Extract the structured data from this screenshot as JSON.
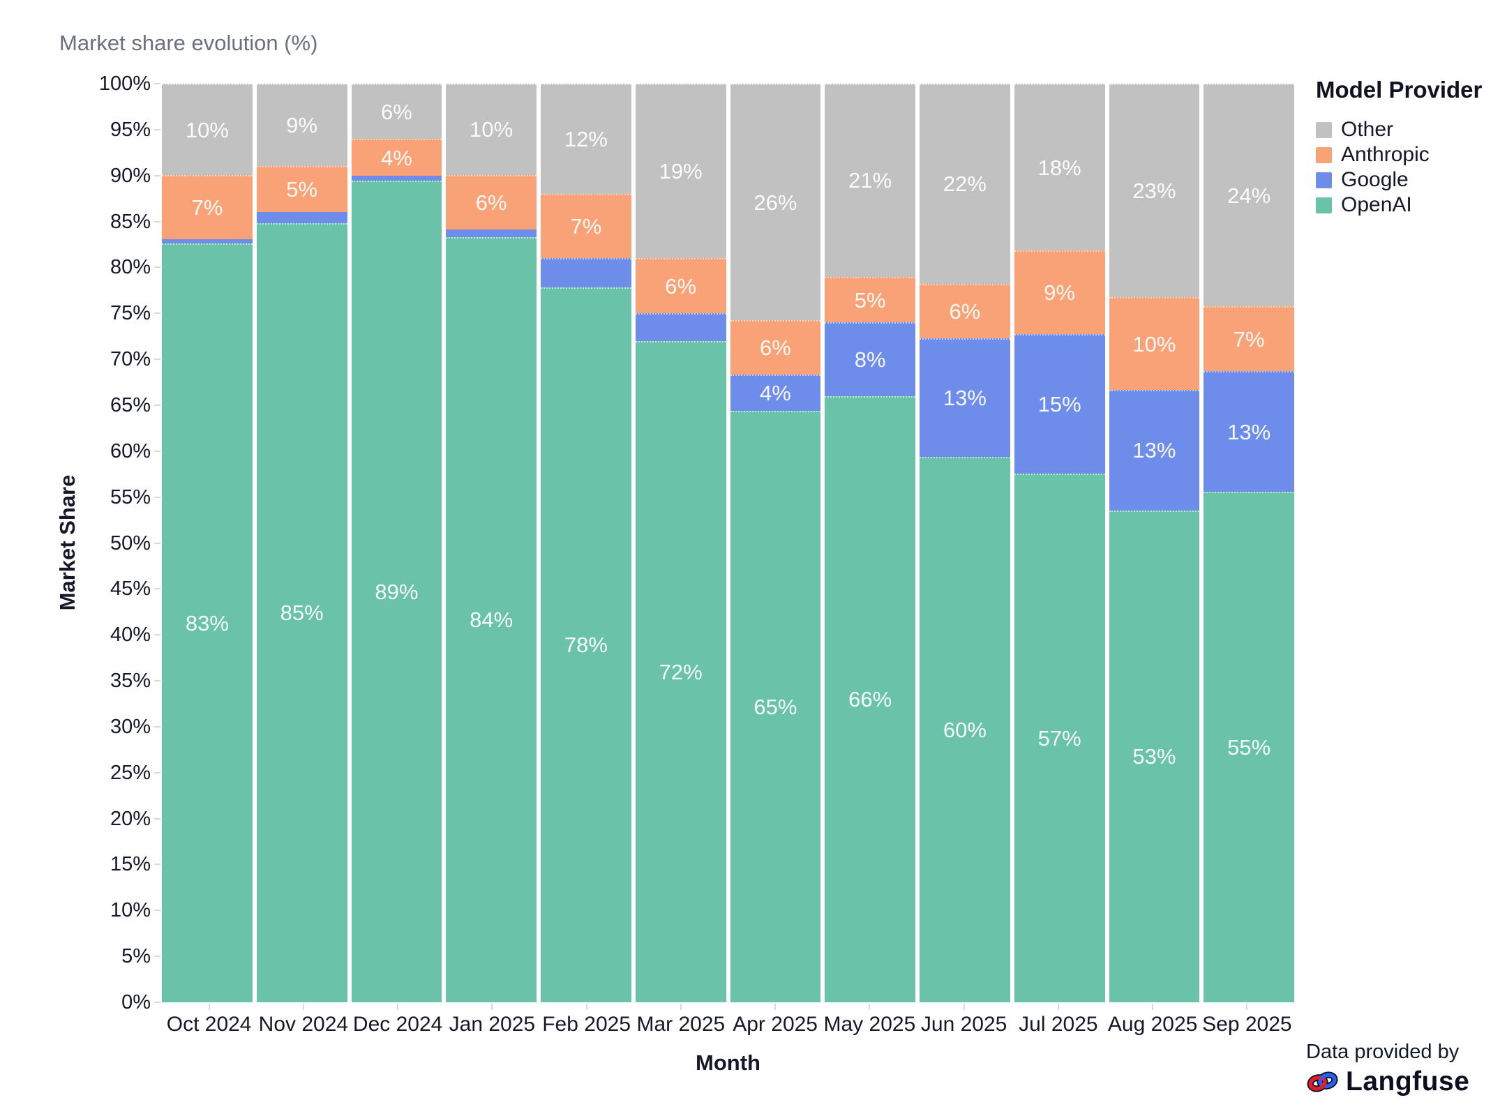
{
  "header": {
    "title": "Market share evolution (%)"
  },
  "chart_data": {
    "type": "bar",
    "stacked": true,
    "title": "Market share evolution (%)",
    "xlabel": "Month",
    "ylabel": "Market Share",
    "ylim": [
      0,
      100
    ],
    "ytick_step": 5,
    "ytick_suffix": "%",
    "legend_position": "right",
    "categories": [
      "Oct 2024",
      "Nov 2024",
      "Dec 2024",
      "Jan 2025",
      "Feb 2025",
      "Mar 2025",
      "Apr 2025",
      "May 2025",
      "Jun 2025",
      "Jul 2025",
      "Aug 2025",
      "Sep 2025"
    ],
    "series": [
      {
        "name": "OpenAI",
        "color": "#6AC2A8",
        "values": [
          83,
          85,
          89,
          84,
          78,
          72,
          65,
          66,
          60,
          57,
          53,
          55
        ],
        "labels": [
          "83%",
          "85%",
          "89%",
          "84%",
          "78%",
          "72%",
          "65%",
          "66%",
          "60%",
          "57%",
          "53%",
          "55%"
        ]
      },
      {
        "name": "Google",
        "color": "#6E8DEB",
        "values": [
          0.5,
          1.2,
          0.5,
          0.8,
          3.2,
          3,
          4,
          8,
          13,
          15,
          13,
          13
        ],
        "labels": [
          null,
          null,
          null,
          null,
          null,
          null,
          "4%",
          "8%",
          "13%",
          "15%",
          "13%",
          "13%"
        ]
      },
      {
        "name": "Anthropic",
        "color": "#F9A277",
        "values": [
          7,
          5,
          4,
          6,
          7,
          6,
          6,
          5,
          6,
          9,
          10,
          7
        ],
        "labels": [
          "7%",
          "5%",
          "4%",
          "6%",
          "7%",
          "6%",
          "6%",
          "5%",
          "6%",
          "9%",
          "10%",
          "7%"
        ]
      },
      {
        "name": "Other",
        "color": "#C1C1C1",
        "values": [
          10,
          9,
          6,
          10,
          12,
          19,
          26,
          21,
          22,
          18,
          23,
          24
        ],
        "labels": [
          "10%",
          "9%",
          "6%",
          "10%",
          "12%",
          "19%",
          "26%",
          "21%",
          "22%",
          "18%",
          "23%",
          "24%"
        ]
      }
    ]
  },
  "legend": {
    "title": "Model Provider",
    "items": [
      {
        "label": "Other",
        "color": "#C1C1C1"
      },
      {
        "label": "Anthropic",
        "color": "#F9A277"
      },
      {
        "label": "Google",
        "color": "#6E8DEB"
      },
      {
        "label": "OpenAI",
        "color": "#6AC2A8"
      }
    ]
  },
  "footer": {
    "attribution_prefix": "Data provided by",
    "brand": "Langfuse"
  }
}
